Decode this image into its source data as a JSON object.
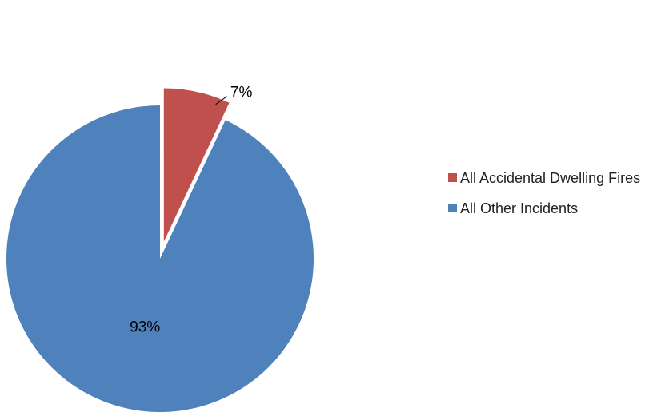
{
  "chart_data": {
    "type": "pie",
    "title": "",
    "slices": [
      {
        "name": "All Accidental Dwelling Fires",
        "value": 7,
        "label": "7%",
        "color": "#C0504D",
        "exploded": true
      },
      {
        "name": "All Other Incidents",
        "value": 93,
        "label": "93%",
        "color": "#4F81BD",
        "exploded": false
      }
    ],
    "start_angle_deg": 0,
    "direction": "clockwise",
    "legend_position": "right"
  }
}
